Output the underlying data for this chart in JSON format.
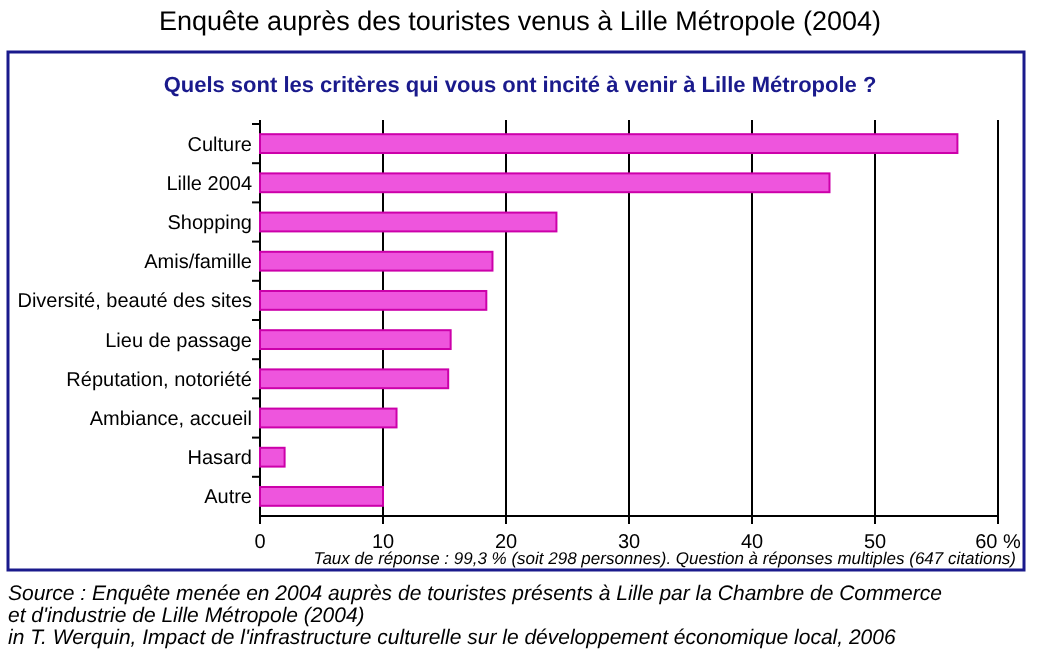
{
  "chart_data": {
    "type": "bar",
    "orientation": "horizontal",
    "title": "Enquête auprès des touristes venus à Lille Métropole (2004)",
    "subtitle": "Quels sont les critères qui vous ont incité à venir à Lille Métropole ?",
    "categories": [
      "Culture",
      "Lille 2004",
      "Shopping",
      "Amis/famille",
      "Diversité, beauté des sites",
      "Lieu de passage",
      "Réputation, notoriété",
      "Ambiance, accueil",
      "Hasard",
      "Autre"
    ],
    "values": [
      56.7,
      46.3,
      24.1,
      18.9,
      18.4,
      15.5,
      15.3,
      11.1,
      2,
      10
    ],
    "color": "#ee55dd",
    "xlim": [
      0,
      60
    ],
    "xticks": [
      0,
      10,
      20,
      30,
      40,
      50,
      {
        "value": 60,
        "label": "60 %"
      }
    ],
    "grid": "x",
    "annotations": [
      "Taux de réponse : 99,3 % (soit 298 personnes). Question à réponses multiples (647 citations)",
      "Source : Enquête menée en 2004 auprès de touristes présents à Lille par la Chambre de Commerce et d'industrie de Lille Métropole (2004)",
      "in T. Werquin, Impact de l'infrastructure culturelle sur le développement économique local, 2006"
    ]
  }
}
